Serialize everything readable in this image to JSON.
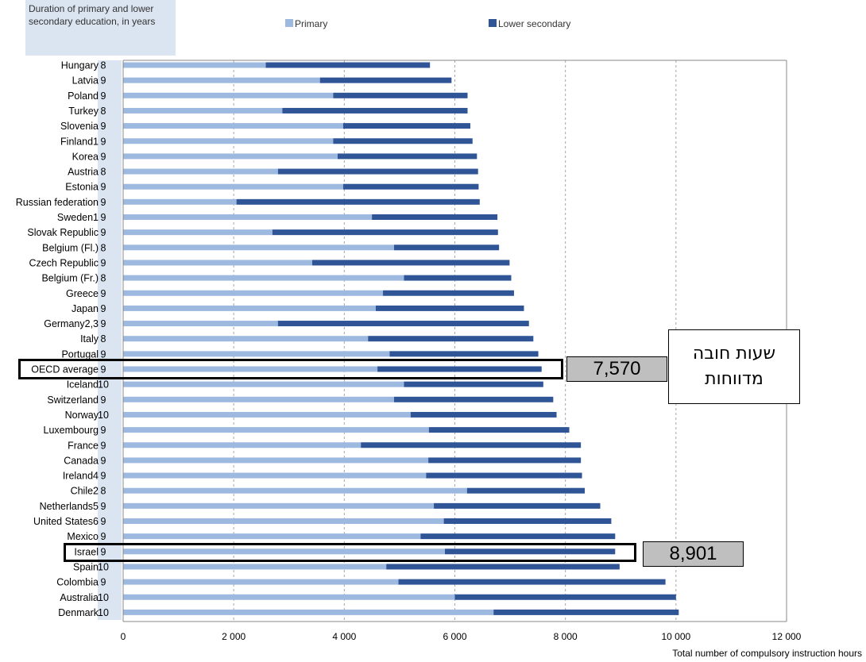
{
  "chart_data": {
    "type": "bar",
    "orientation": "horizontal",
    "stacked": true,
    "duration_header": "Duration of primary and lower secondary education, in years",
    "xlabel": "Total number of compulsory instruction hours",
    "xlim": [
      0,
      12000
    ],
    "xticks": [
      "0",
      "2 000",
      "4 000",
      "6 000",
      "8 000",
      "10 000",
      "12 000"
    ],
    "grid": "vertical dashed",
    "legend": [
      "Primary",
      "Lower secondary"
    ],
    "legend_position": "top",
    "colors": {
      "primary": "#9db9e0",
      "lower_secondary": "#2f5597",
      "duration_column": "#dbe5f1"
    },
    "categories": [
      "Hungary",
      "Latvia",
      "Poland",
      "Turkey",
      "Slovenia",
      "Finland1",
      "Korea",
      "Austria",
      "Estonia",
      "Russian federation",
      "Sweden1",
      "Slovak Republic",
      "Belgium (Fl.)",
      "Czech Republic",
      "Belgium (Fr.)",
      "Greece",
      "Japan",
      "Germany2,3",
      "Italy",
      "Portugal",
      "OECD average",
      "Iceland",
      "Switzerland",
      "Norway",
      "Luxembourg",
      "France",
      "Canada",
      "Ireland4",
      "Chile2",
      "Netherlands5",
      "United States6",
      "Mexico",
      "Israel",
      "Spain",
      "Colombia",
      "Australia",
      "Denmark"
    ],
    "durations": [
      "8",
      "9",
      "9",
      "8",
      "9",
      "9",
      "9",
      "8",
      "9",
      "9",
      "9",
      "9",
      "8",
      "9",
      "8",
      "9",
      "9",
      "9",
      "8",
      "9",
      "9",
      "10",
      "9",
      "10",
      "9",
      "9",
      "9",
      "9",
      "8",
      "9",
      "9",
      "9",
      "9",
      "10",
      "9",
      "10",
      "10"
    ],
    "series": [
      {
        "name": "Primary",
        "values": [
          2580,
          3560,
          3800,
          2880,
          3980,
          3800,
          3880,
          2800,
          3980,
          2050,
          4500,
          2700,
          4900,
          3420,
          5080,
          4700,
          4570,
          2800,
          4430,
          4820,
          4600,
          5080,
          4900,
          5200,
          5530,
          4300,
          5520,
          5480,
          6220,
          5620,
          5800,
          5380,
          5820,
          4760,
          4980,
          6000,
          6700
        ]
      },
      {
        "name": "Lower secondary",
        "values": [
          2970,
          2380,
          2430,
          3350,
          2300,
          2520,
          2520,
          3620,
          2450,
          4400,
          2270,
          4080,
          1900,
          3570,
          1940,
          2370,
          2680,
          4540,
          2990,
          2690,
          2970,
          2520,
          2880,
          2640,
          2540,
          3980,
          2760,
          2820,
          2130,
          3010,
          3030,
          3520,
          3080,
          4220,
          4830,
          4000,
          3350
        ]
      }
    ],
    "annotations": {
      "oecd_value": "7,570",
      "israel_value": "8,901",
      "note": "שעות חובה מדווחות"
    }
  }
}
